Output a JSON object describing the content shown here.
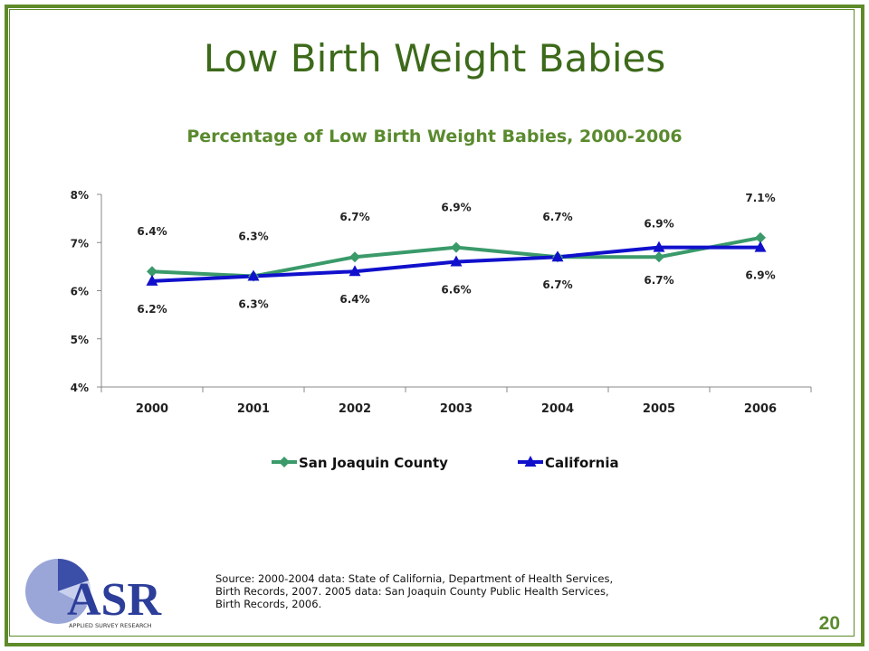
{
  "slide": {
    "title": "Low Birth Weight Babies",
    "source": "Source: 2000-2004 data: State of California, Department of Health Services, Birth Records, 2007. 2005 data: San Joaquin County Public Health Services, Birth Records, 2006.",
    "page_number": "20",
    "logo_text": "ASR",
    "logo_subtext": "APPLIED SURVEY RESEARCH"
  },
  "colors": {
    "frame": "#5e8a2a",
    "title": "#3d6a1a",
    "accent": "#5a8a2e",
    "san_joaquin": "#3a9a6a",
    "california": "#1010cc"
  },
  "chart_data": {
    "type": "line",
    "title": "Percentage of Low Birth Weight Babies, 2000-2006",
    "categories": [
      "2000",
      "2001",
      "2002",
      "2003",
      "2004",
      "2005",
      "2006"
    ],
    "ylim": [
      4,
      8
    ],
    "y_ticks": [
      "4%",
      "5%",
      "6%",
      "7%",
      "8%"
    ],
    "grid": false,
    "legend_position": "bottom",
    "series": [
      {
        "name": "San Joaquin County",
        "marker": "diamond",
        "color": "#3a9a6a",
        "values": [
          6.4,
          6.3,
          6.7,
          6.9,
          6.7,
          6.7,
          7.1
        ],
        "labels": [
          "6.4%",
          "6.3%",
          "6.7%",
          "6.9%",
          "6.7%",
          "6.7%",
          "7.1%"
        ]
      },
      {
        "name": "California",
        "marker": "triangle",
        "color": "#1010cc",
        "values": [
          6.2,
          6.3,
          6.4,
          6.6,
          6.7,
          6.9,
          6.9
        ],
        "labels": [
          "6.2%",
          "6.3%",
          "6.4%",
          "6.6%",
          "6.7%",
          "6.9%",
          "6.9%"
        ]
      }
    ]
  }
}
